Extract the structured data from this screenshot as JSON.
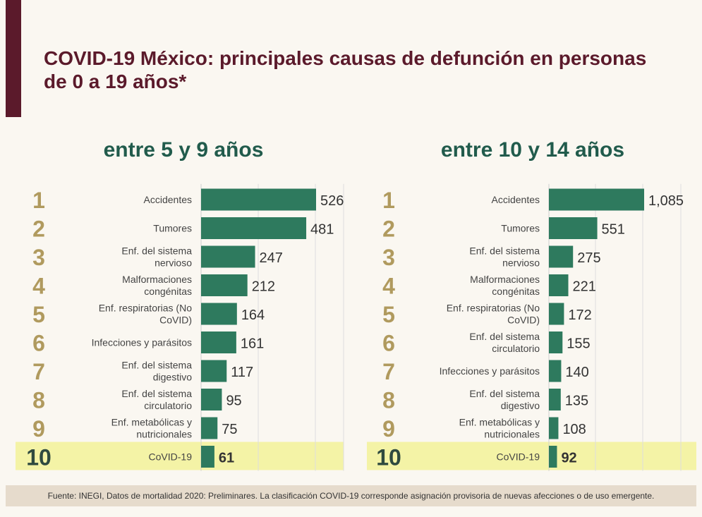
{
  "title": "COVID-19 México: principales causas de defunción en personas de 0 a 19 años*",
  "source": "Fuente: INEGI, Datos de mortalidad 2020: Preliminares. La clasificación COVID-19 corresponde asignación provisoria de nuevas afecciones o de uso emergente.",
  "colors": {
    "bar": "#2e7a5e",
    "rank": "#b09a5e",
    "highlight": "#f4f3a6",
    "title": "#5b1a2b",
    "panel_title": "#215b4c"
  },
  "chart_data": [
    {
      "type": "bar",
      "orientation": "horizontal",
      "title": "entre 5 y 9 años",
      "ranks": [
        "1",
        "2",
        "3",
        "4",
        "5",
        "6",
        "7",
        "8",
        "9",
        "10"
      ],
      "categories": [
        "Accidentes",
        "Tumores",
        "Enf. del sistema nervioso",
        "Malformaciones congénitas",
        "Enf. respiratorias (No CoVID)",
        "Infecciones y parásitos",
        "Enf. del sistema digestivo",
        "Enf. del sistema circulatorio",
        "Enf. metabólicas y nutricionales",
        "CoVID-19"
      ],
      "values": [
        526,
        481,
        247,
        212,
        164,
        161,
        117,
        95,
        75,
        61
      ],
      "value_labels": [
        "526",
        "481",
        "247",
        "212",
        "164",
        "161",
        "117",
        "95",
        "75",
        "61"
      ],
      "highlight_index": 9,
      "xlim": [
        0,
        560
      ],
      "grid": true
    },
    {
      "type": "bar",
      "orientation": "horizontal",
      "title": "entre 10 y 14 años",
      "ranks": [
        "1",
        "2",
        "3",
        "4",
        "5",
        "6",
        "7",
        "8",
        "9",
        "10"
      ],
      "categories": [
        "Accidentes",
        "Tumores",
        "Enf. del sistema nervioso",
        "Malformaciones congénitas",
        "Enf. respiratorias (No CoVID)",
        "Enf. del sistema circulatorio",
        "Infecciones y parásitos",
        "Enf. del sistema digestivo",
        "Enf. metabólicas y nutricionales",
        "CoVID-19"
      ],
      "values": [
        1085,
        551,
        275,
        221,
        172,
        155,
        140,
        135,
        108,
        92
      ],
      "value_labels": [
        "1,085",
        "551",
        "275",
        "221",
        "172",
        "155",
        "140",
        "135",
        "108",
        "92"
      ],
      "highlight_index": 9,
      "xlim": [
        0,
        1200
      ],
      "grid": true
    }
  ]
}
